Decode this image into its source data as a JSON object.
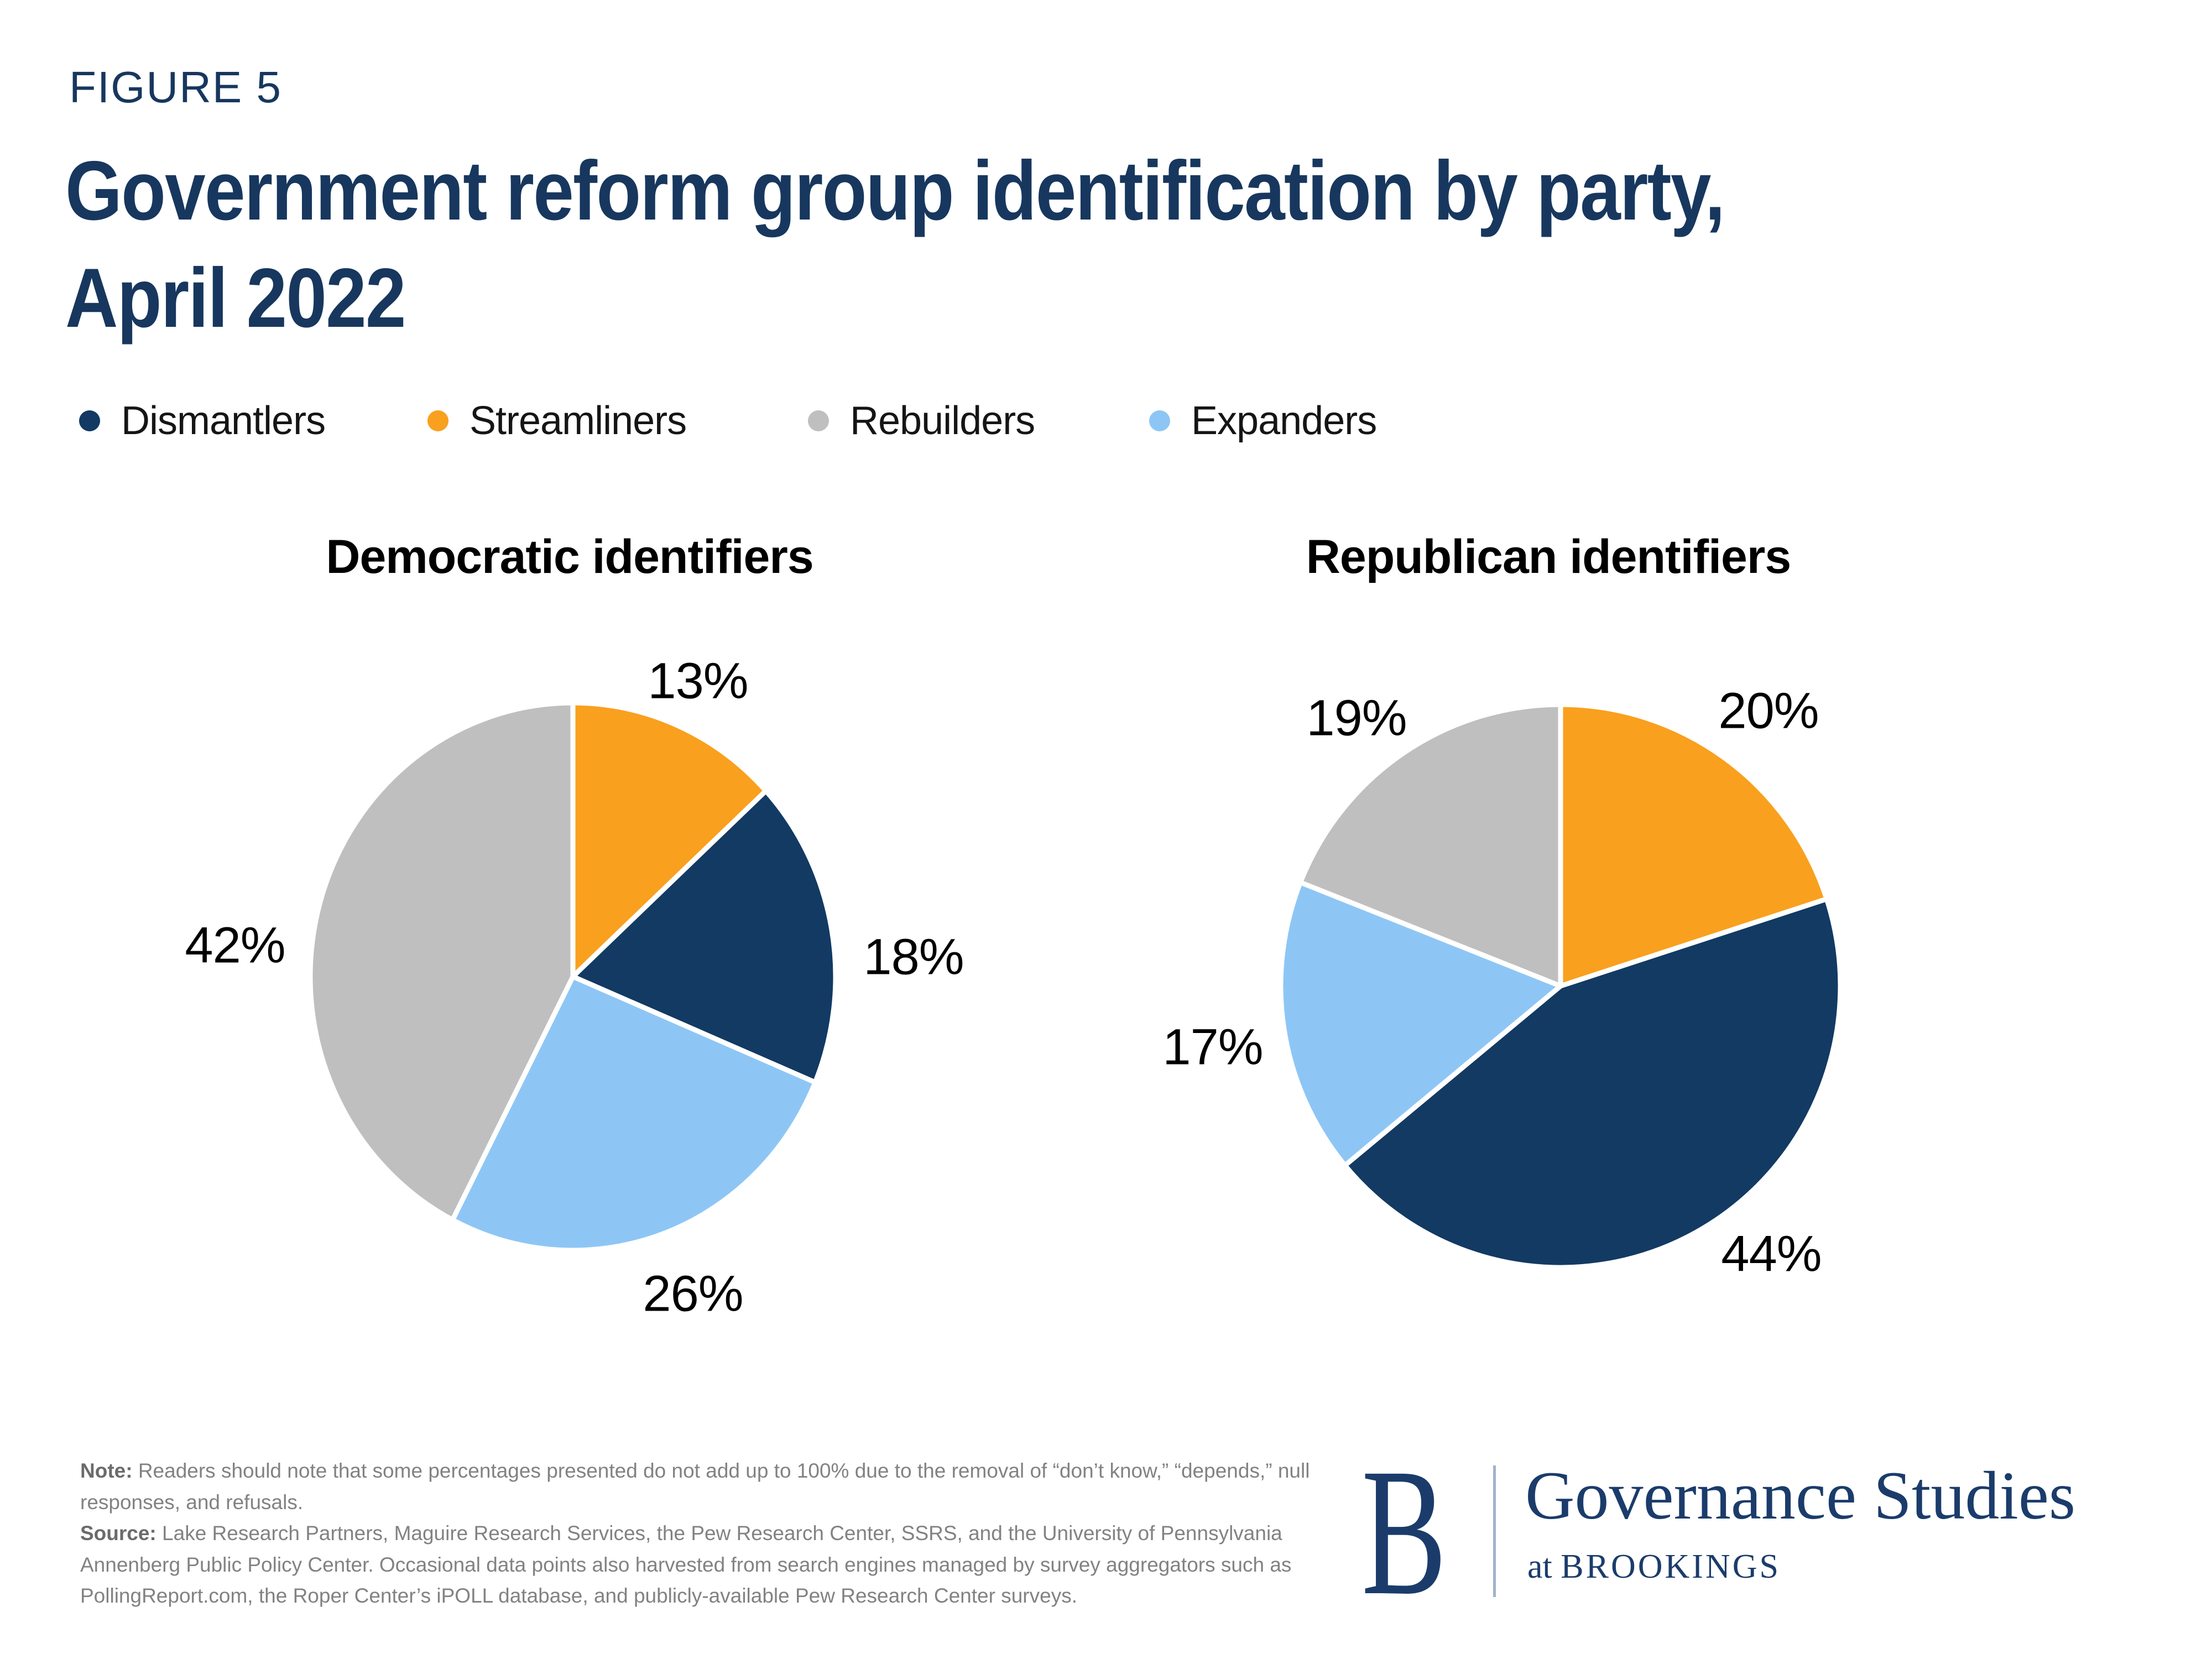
{
  "figure_label": "FIGURE 5",
  "title": {
    "line1": "Government reform group identification by party,",
    "line2": "April 2022"
  },
  "legend": {
    "position": "top",
    "items": [
      {
        "label": "Dismantlers",
        "color": "#123A63"
      },
      {
        "label": "Streamliners",
        "color": "#F9A01E"
      },
      {
        "label": "Rebuilders",
        "color": "#BFBFBF"
      },
      {
        "label": "Expanders",
        "color": "#8DC6F5"
      }
    ]
  },
  "chart_data": [
    {
      "type": "pie",
      "title": "Democratic identifiers",
      "categories": [
        "Streamliners",
        "Dismantlers",
        "Expanders",
        "Rebuilders"
      ],
      "values": [
        13,
        18,
        26,
        42
      ],
      "start_angle_deg": -90,
      "direction": "clockwise",
      "segments": [
        {
          "name": "Streamliners",
          "value": 13,
          "label": "13%",
          "color": "#F9A01E"
        },
        {
          "name": "Dismantlers",
          "value": 18,
          "label": "18%",
          "color": "#123A63"
        },
        {
          "name": "Expanders",
          "value": 26,
          "label": "26%",
          "color": "#8DC6F5"
        },
        {
          "name": "Rebuilders",
          "value": 42,
          "label": "42%",
          "color": "#BFBFBF"
        }
      ]
    },
    {
      "type": "pie",
      "title": "Republican identifiers",
      "categories": [
        "Streamliners",
        "Dismantlers",
        "Expanders",
        "Rebuilders"
      ],
      "values": [
        20,
        44,
        17,
        19
      ],
      "start_angle_deg": -90,
      "direction": "clockwise",
      "segments": [
        {
          "name": "Streamliners",
          "value": 20,
          "label": "20%",
          "color": "#F9A01E"
        },
        {
          "name": "Dismantlers",
          "value": 44,
          "label": "44%",
          "color": "#123A63"
        },
        {
          "name": "Expanders",
          "value": 17,
          "label": "17%",
          "color": "#8DC6F5"
        },
        {
          "name": "Rebuilders",
          "value": 19,
          "label": "19%",
          "color": "#BFBFBF"
        }
      ]
    }
  ],
  "note": {
    "note_label": "Note:",
    "note_text": "Readers should note that some percentages presented do not add up to 100% due to the removal of “don’t know,” “depends,” null responses, and refusals.",
    "source_label": "Source:",
    "source_text": "Lake Research Partners, Maguire Research Services, the Pew Research Center, SSRS, and the University of Pennsylvania Annenberg Public Policy Center. Occasional data points also harvested from search engines managed by survey aggregators such as PollingReport.com, the Roper Center’s iPOLL database, and publicly-available Pew Research Center surveys."
  },
  "logo": {
    "monogram": "B",
    "name": "Governance Studies",
    "sub_prefix": "at ",
    "sub_caps": "BROOKINGS"
  },
  "colors": {
    "heading_navy": "#17375E",
    "slice_navy": "#123A63",
    "slice_orange": "#F9A01E",
    "slice_gray": "#BFBFBF",
    "slice_blue": "#8DC6F5",
    "note_gray": "#828282",
    "logo_navy": "#1B3C6B",
    "background": "#FFFFFF"
  }
}
